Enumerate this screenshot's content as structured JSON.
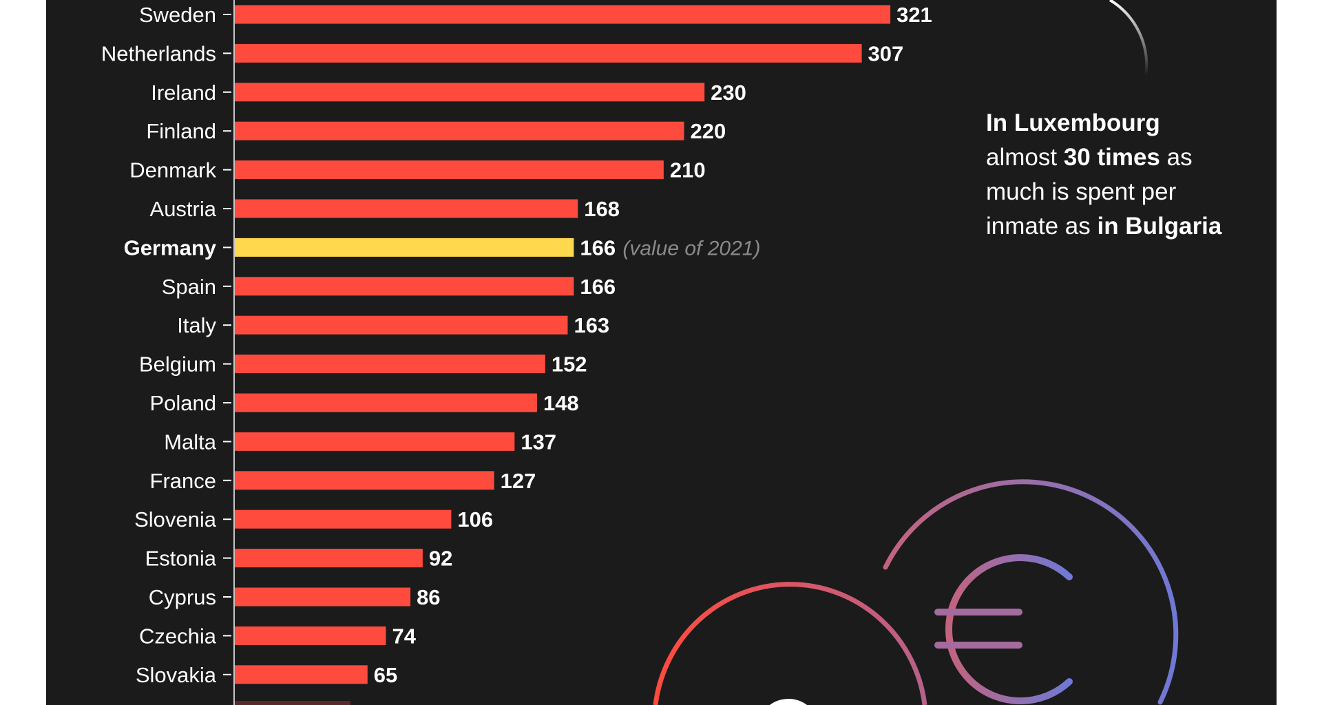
{
  "chart_data": {
    "type": "bar",
    "orientation": "horizontal",
    "categories": [
      "Sweden",
      "Netherlands",
      "Ireland",
      "Finland",
      "Denmark",
      "Austria",
      "Germany",
      "Spain",
      "Italy",
      "Belgium",
      "Poland",
      "Malta",
      "France",
      "Slovenia",
      "Estonia",
      "Cyprus",
      "Czechia",
      "Slovakia"
    ],
    "values": [
      321,
      307,
      230,
      220,
      210,
      168,
      166,
      166,
      163,
      152,
      148,
      137,
      127,
      106,
      92,
      86,
      74,
      65
    ],
    "highlight": {
      "category": "Germany",
      "note": "(value of 2021)"
    },
    "colors": {
      "bar": "#ff4b3e",
      "highlight": "#ffd84d",
      "background": "#1b1b1b",
      "label": "#ffffff",
      "note": "#8a8a8a"
    },
    "grid": false
  },
  "annotation": {
    "line1_bold": "In Luxembourg",
    "line2_pre": "almost ",
    "line2_bold": "30 times",
    "line2_post": " as",
    "line3": "much is spent per",
    "line4_pre": "inmate as ",
    "line4_bold": "in Bulgaria"
  },
  "decorations": [
    "euro-coin-icon",
    "globe-icon"
  ]
}
